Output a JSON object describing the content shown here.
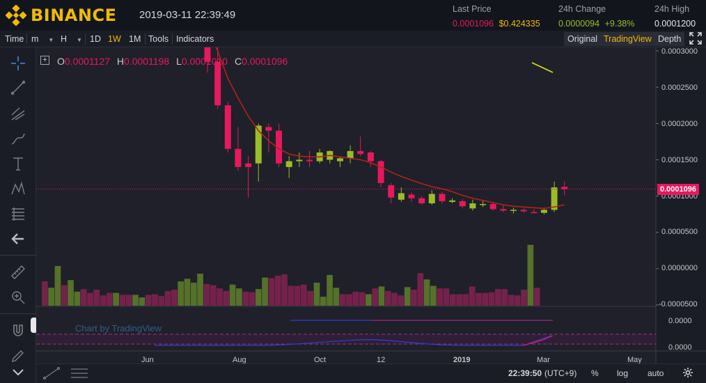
{
  "header": {
    "brand": "BINANCE",
    "datetime": "2019-03-11 22:39:49",
    "last_price_label": "Last Price",
    "last_price_value": "0.0001096",
    "last_price_usd": "$0.424335",
    "change_label": "24h Change",
    "change_value": "0.0000094",
    "change_pct": "+9.38%",
    "high_label": "24h High",
    "high_value": "0.0001200"
  },
  "toolbar": {
    "time": "Time",
    "minute": "m",
    "hour": "H",
    "d1": "1D",
    "w1": "1W",
    "m1": "1M",
    "tools": "Tools",
    "indicators": "Indicators",
    "original": "Original",
    "tradingview": "TradingView",
    "depth": "Depth"
  },
  "ohlc": {
    "o_label": "O",
    "o": "0.0001127",
    "h_label": "H",
    "h": "0.0001198",
    "l_label": "L",
    "l": "0.0001010",
    "c_label": "C",
    "c": "0.0001096"
  },
  "axis": {
    "y_labels": [
      "0.0003000",
      "0.0002500",
      "0.0002000",
      "0.0001500",
      "0.0001000",
      "0.0000500",
      "0.0000000",
      "-0.0000500"
    ],
    "current_price": "0.0001096",
    "x_labels": [
      "Jun",
      "Aug",
      "Oct",
      "12",
      "2019",
      "Mar",
      "May"
    ],
    "osc_labels": [
      "0.0000",
      "0.0000"
    ]
  },
  "watermark": "Chart by TradingView",
  "bottom": {
    "time": "22:39:50",
    "tz": "(UTC+9)",
    "pct": "%",
    "log": "log",
    "auto": "auto"
  },
  "colors": {
    "up": "#9bbc2a",
    "down": "#e6195e",
    "ma": "#b2231c",
    "vol_up": "#5b7a2a",
    "vol_down": "#7d2250",
    "accent": "#f0b90b"
  },
  "chart_data": {
    "type": "candlestick",
    "interval": "1W",
    "ylim": [
      -5e-05,
      0.0003
    ],
    "candles": [
      {
        "o": 0.000305,
        "h": 0.000325,
        "l": 0.00027,
        "c": 0.000285
      },
      {
        "o": 0.000285,
        "h": 0.00031,
        "l": 0.00022,
        "c": 0.000225
      },
      {
        "o": 0.000225,
        "h": 0.00023,
        "l": 0.00016,
        "c": 0.000165
      },
      {
        "o": 0.000165,
        "h": 0.000195,
        "l": 0.000135,
        "c": 0.00014
      },
      {
        "o": 0.000145,
        "h": 0.000155,
        "l": 9.8e-05,
        "c": 0.00014
      },
      {
        "o": 0.000145,
        "h": 0.0002,
        "l": 0.00012,
        "c": 0.000197
      },
      {
        "o": 0.000195,
        "h": 0.0002,
        "l": 0.00016,
        "c": 0.00019
      },
      {
        "o": 0.00019,
        "h": 0.0002,
        "l": 0.00014,
        "c": 0.000145
      },
      {
        "o": 0.00014,
        "h": 0.000155,
        "l": 0.000125,
        "c": 0.000148
      },
      {
        "o": 0.000148,
        "h": 0.00016,
        "l": 0.00014,
        "c": 0.00015
      },
      {
        "o": 0.00015,
        "h": 0.000162,
        "l": 0.00014,
        "c": 0.000148
      },
      {
        "o": 0.000148,
        "h": 0.000165,
        "l": 0.000145,
        "c": 0.00016
      },
      {
        "o": 0.00015,
        "h": 0.000163,
        "l": 0.000145,
        "c": 0.000162
      },
      {
        "o": 0.000148,
        "h": 0.000155,
        "l": 0.00014,
        "c": 0.000152
      },
      {
        "o": 0.000152,
        "h": 0.00017,
        "l": 0.000145,
        "c": 0.000162
      },
      {
        "o": 0.000162,
        "h": 0.000182,
        "l": 0.000155,
        "c": 0.000158
      },
      {
        "o": 0.00016,
        "h": 0.000162,
        "l": 0.00014,
        "c": 0.000148
      },
      {
        "o": 0.000148,
        "h": 0.00015,
        "l": 0.000112,
        "c": 0.000118
      },
      {
        "o": 0.000115,
        "h": 0.000118,
        "l": 9e-05,
        "c": 9.8e-05
      },
      {
        "o": 9.5e-05,
        "h": 0.000112,
        "l": 9.2e-05,
        "c": 0.000104
      },
      {
        "o": 0.000102,
        "h": 0.000105,
        "l": 9.2e-05,
        "c": 9.7e-05
      },
      {
        "o": 9.7e-05,
        "h": 0.0001,
        "l": 8.8e-05,
        "c": 9e-05
      },
      {
        "o": 9e-05,
        "h": 0.000108,
        "l": 8.8e-05,
        "c": 0.000103
      },
      {
        "o": 0.000103,
        "h": 0.000106,
        "l": 9e-05,
        "c": 9.3e-05
      },
      {
        "o": 9.2e-05,
        "h": 9.7e-05,
        "l": 9e-05,
        "c": 9.4e-05
      },
      {
        "o": 9.3e-05,
        "h": 9.6e-05,
        "l": 8.3e-05,
        "c": 8.6e-05
      },
      {
        "o": 8.3e-05,
        "h": 9.5e-05,
        "l": 8e-05,
        "c": 9e-05
      },
      {
        "o": 8.9e-05,
        "h": 9.4e-05,
        "l": 8.5e-05,
        "c": 8.9e-05
      },
      {
        "o": 8.9e-05,
        "h": 9.2e-05,
        "l": 8e-05,
        "c": 8.2e-05
      },
      {
        "o": 8.2e-05,
        "h": 8.8e-05,
        "l": 7.8e-05,
        "c": 8e-05
      },
      {
        "o": 8e-05,
        "h": 8.4e-05,
        "l": 7.6e-05,
        "c": 8.1e-05
      },
      {
        "o": 8.1e-05,
        "h": 8.3e-05,
        "l": 7.7e-05,
        "c": 7.9e-05
      },
      {
        "o": 7.8e-05,
        "h": 8.2e-05,
        "l": 7.6e-05,
        "c": 7.7e-05
      },
      {
        "o": 7.7e-05,
        "h": 8.4e-05,
        "l": 7.5e-05,
        "c": 8.1e-05
      },
      {
        "o": 8.1e-05,
        "h": 0.00012,
        "l": 7.8e-05,
        "c": 0.000112
      },
      {
        "o": 0.0001127,
        "h": 0.0001198,
        "l": 0.000101,
        "c": 0.0001096
      }
    ],
    "ma": [
      0.00033,
      0.0003,
      0.000262,
      0.000235,
      0.00021,
      0.00019,
      0.000176,
      0.000165,
      0.000158,
      0.000155,
      0.000154,
      0.000154,
      0.000156,
      0.000154,
      0.000152,
      0.00015,
      0.000146,
      0.00014,
      0.000133,
      0.000127,
      0.000122,
      0.000117,
      0.000113,
      0.00011,
      0.000106,
      0.000101,
      9.7e-05,
      9.4e-05,
      9.1e-05,
      8.8e-05,
      8.6e-05,
      8.5e-05,
      8.4e-05,
      8.3e-05,
      8.5e-05,
      8.8e-05
    ],
    "volume": [
      0.38,
      0.28,
      0.62,
      0.32,
      0.4,
      0.22,
      0.26,
      0.2,
      0.25,
      0.16,
      0.2,
      0.2,
      0.17,
      0.17,
      0.17,
      0.13,
      0.17,
      0.18,
      0.15,
      0.23,
      0.25,
      0.38,
      0.42,
      0.36,
      0.5,
      0.34,
      0.32,
      0.27,
      0.23,
      0.33,
      0.27,
      0.22,
      0.21,
      0.26,
      0.44,
      0.43,
      0.47,
      0.49,
      0.31,
      0.31,
      0.33,
      0.23,
      0.36,
      0.14,
      0.48,
      0.28,
      0.18,
      0.18,
      0.22,
      0.21,
      0.18,
      0.27,
      0.3,
      0.23,
      0.2,
      0.16,
      0.29,
      0.25,
      0.51,
      0.41,
      0.31,
      0.27,
      0.27,
      0.18,
      0.18,
      0.18,
      0.3,
      0.2,
      0.2,
      0.21,
      0.26,
      0.26,
      0.17,
      0.16,
      0.25,
      0.95,
      0.28
    ]
  }
}
